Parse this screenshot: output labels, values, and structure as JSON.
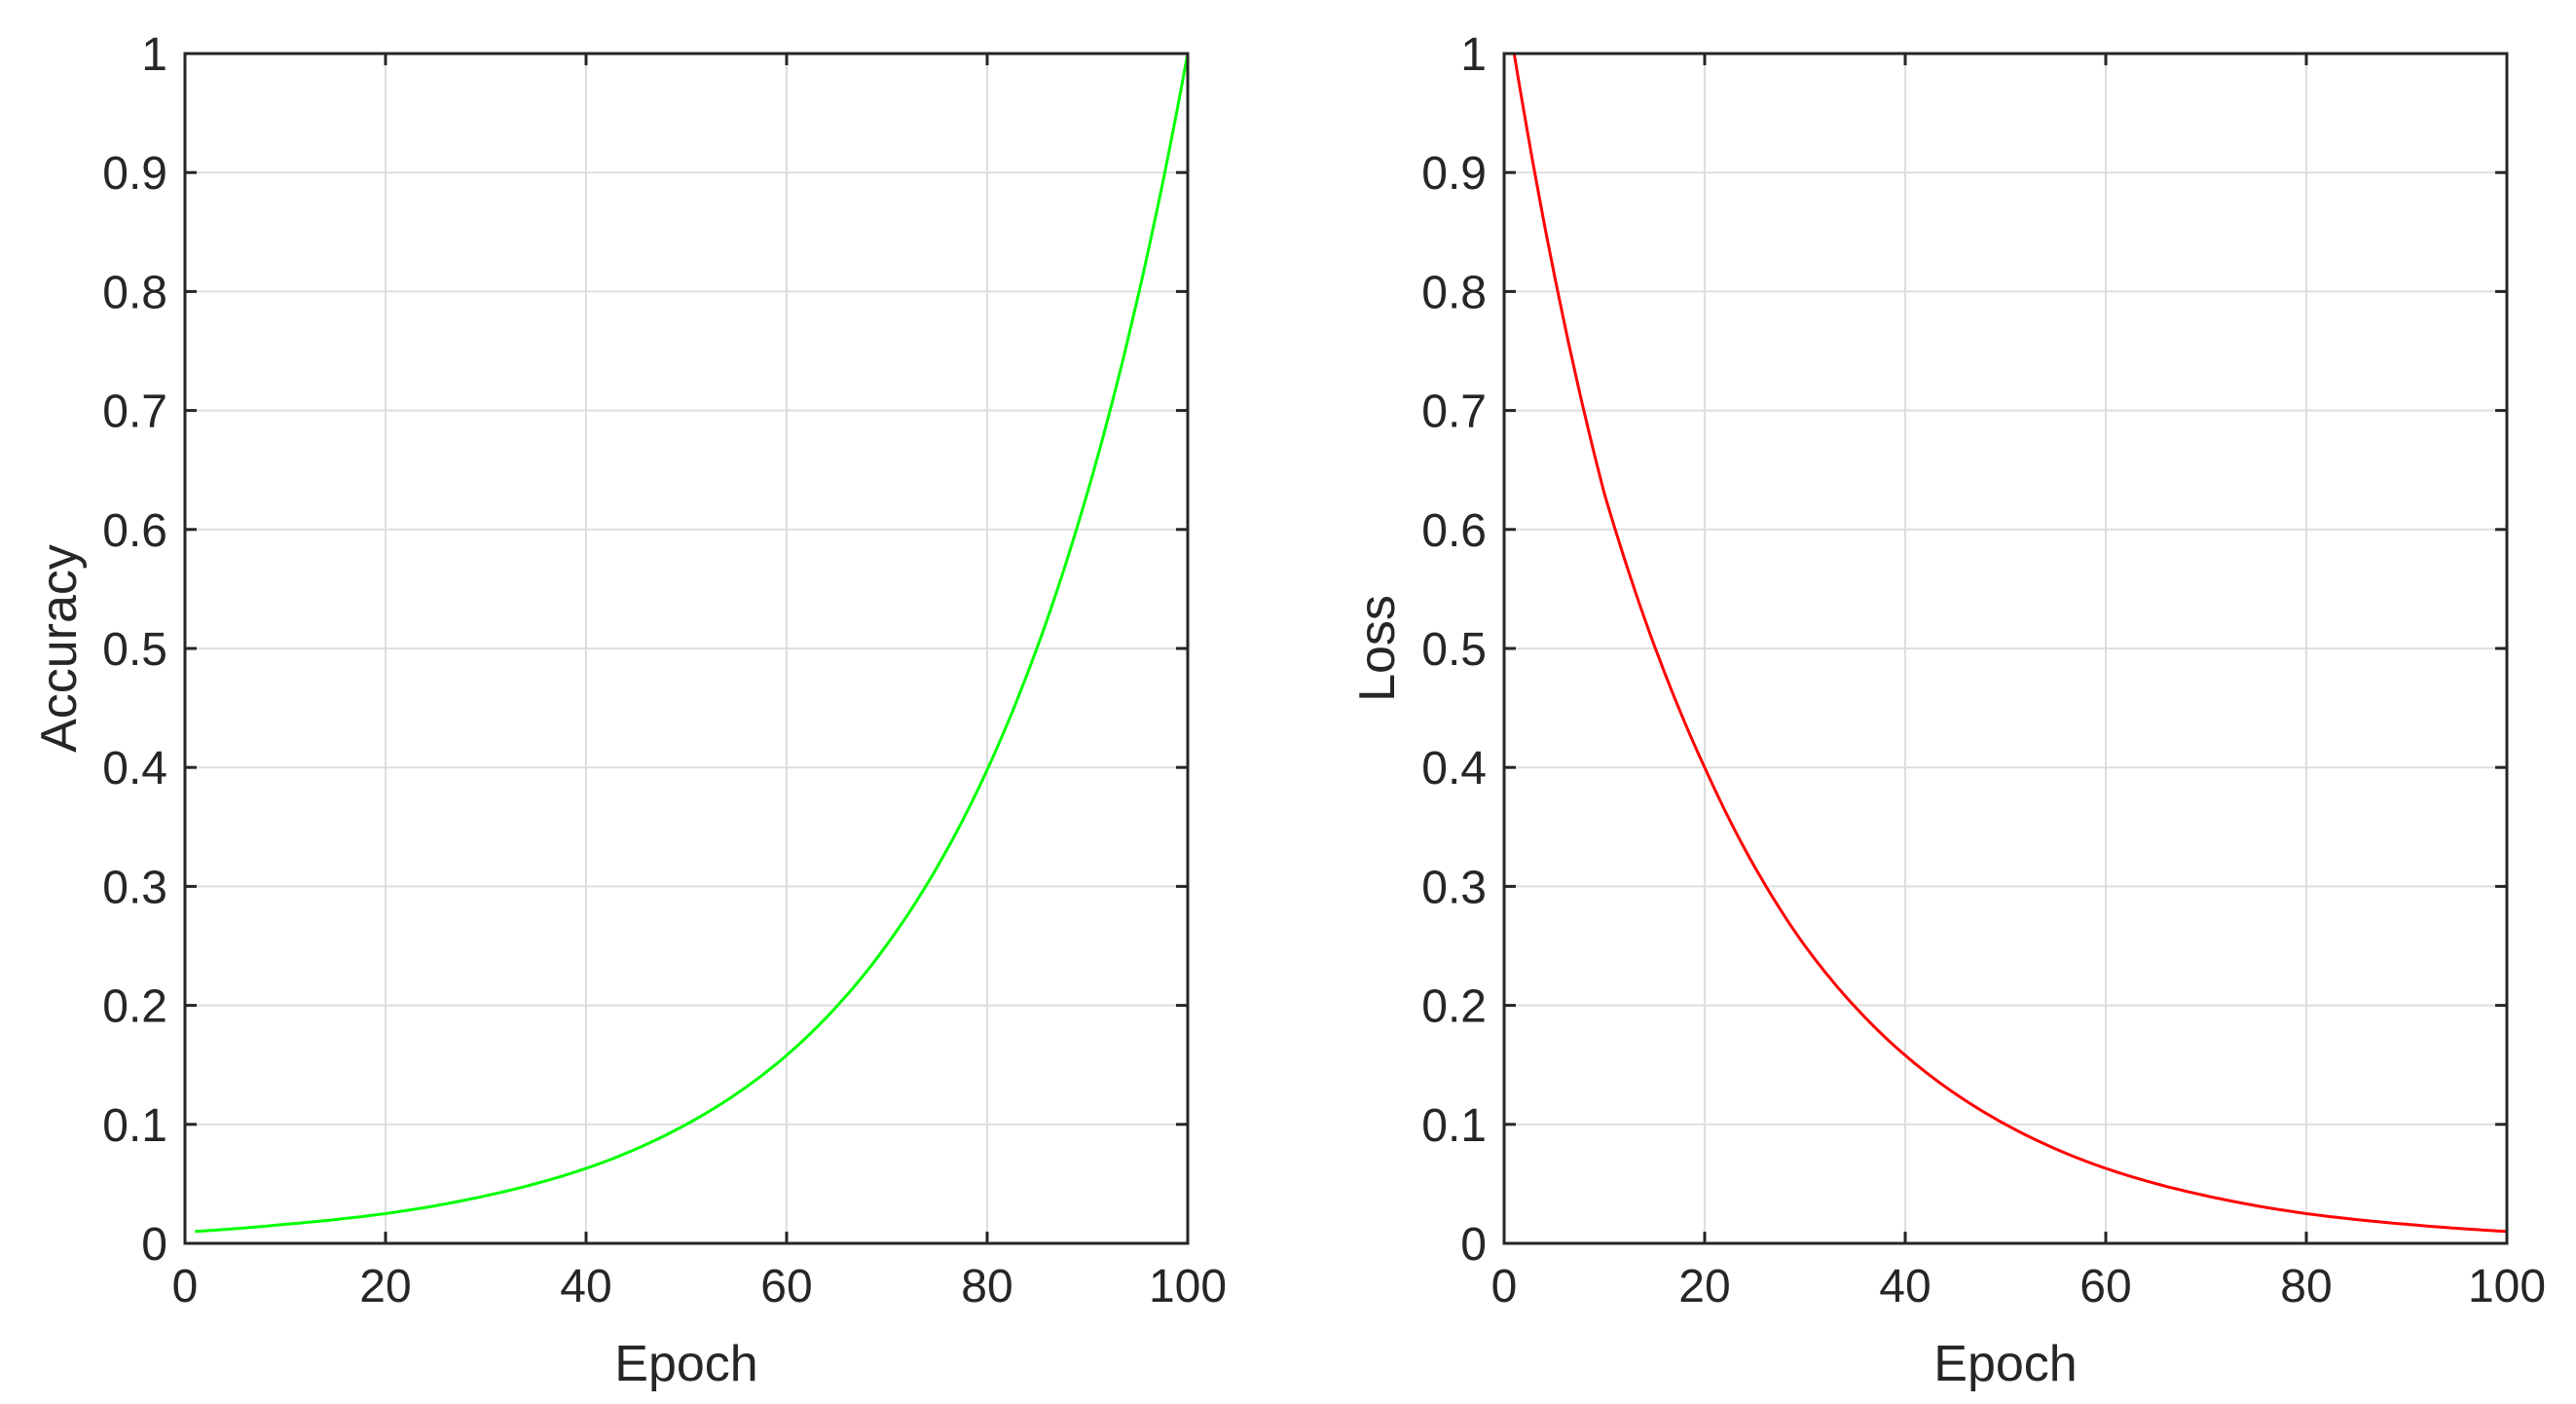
{
  "chart_data": [
    {
      "type": "line",
      "xlabel": "Epoch",
      "ylabel": "Accuracy",
      "xlim": [
        0,
        100
      ],
      "ylim": [
        0,
        1
      ],
      "xticks": [
        "0",
        "20",
        "40",
        "60",
        "80",
        "100"
      ],
      "yticks": [
        "0",
        "0.1",
        "0.2",
        "0.3",
        "0.4",
        "0.5",
        "0.6",
        "0.7",
        "0.8",
        "0.9",
        "1"
      ],
      "grid": true,
      "series": [
        {
          "color": "#00ff00",
          "x": [
            1,
            10,
            20,
            30,
            40,
            50,
            60,
            70,
            80,
            90,
            100
          ],
          "y": [
            0.01,
            0.016,
            0.025,
            0.04,
            0.063,
            0.1,
            0.158,
            0.251,
            0.398,
            0.631,
            1.0
          ]
        }
      ]
    },
    {
      "type": "line",
      "xlabel": "Epoch",
      "ylabel": "Loss",
      "xlim": [
        0,
        100
      ],
      "ylim": [
        0,
        1
      ],
      "xticks": [
        "0",
        "20",
        "40",
        "60",
        "80",
        "100"
      ],
      "yticks": [
        "0",
        "0.1",
        "0.2",
        "0.3",
        "0.4",
        "0.5",
        "0.6",
        "0.7",
        "0.8",
        "0.9",
        "1"
      ],
      "grid": true,
      "series": [
        {
          "color": "#ff0000",
          "x": [
            1,
            10,
            20,
            30,
            40,
            50,
            60,
            70,
            80,
            90,
            100
          ],
          "y": [
            1.0,
            0.63,
            0.4,
            0.25,
            0.158,
            0.1,
            0.063,
            0.04,
            0.025,
            0.016,
            0.01
          ]
        }
      ]
    }
  ]
}
